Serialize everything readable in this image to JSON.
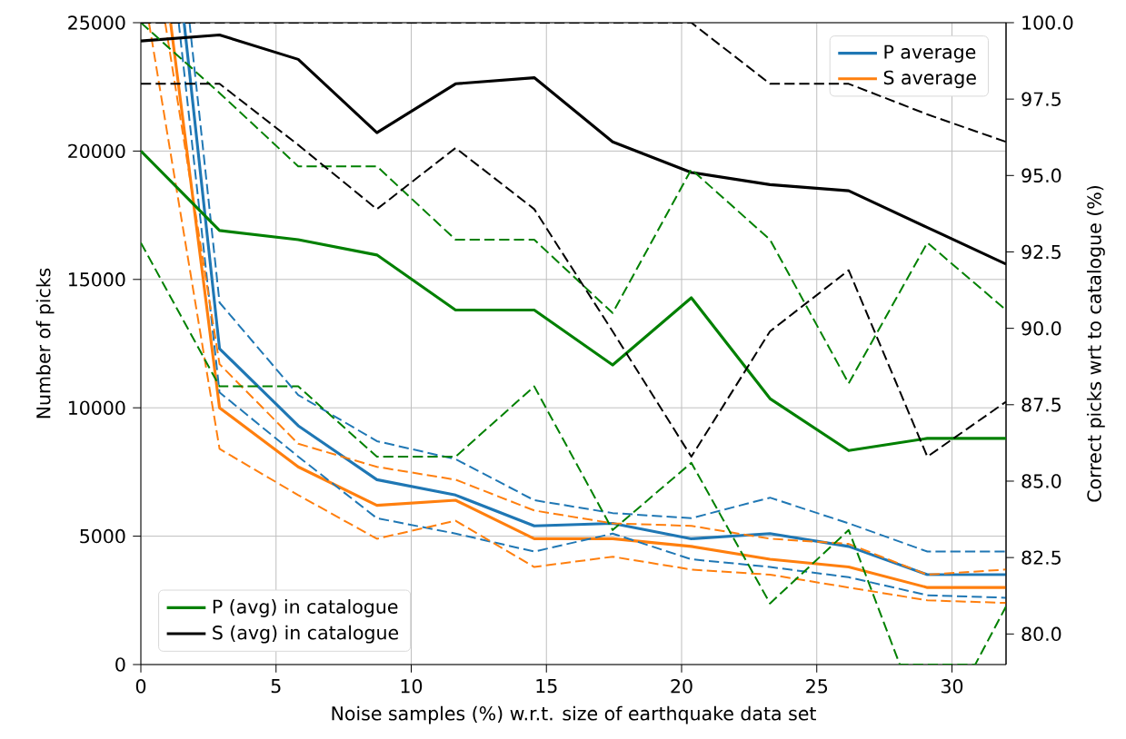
{
  "chart_data": {
    "type": "line",
    "xlabel": "Noise samples (%) w.r.t. size of earthquake data set",
    "ylabel": "Number of picks",
    "y2label": "Correct picks wrt to catalogue (%)",
    "x": [
      0,
      2.91,
      5.82,
      8.73,
      11.64,
      14.55,
      17.45,
      20.36,
      23.27,
      26.18,
      29.09,
      32
    ],
    "xlim": [
      0,
      32
    ],
    "xticks": [
      0,
      5,
      10,
      15,
      20,
      25,
      30
    ],
    "ylim": [
      0,
      25000
    ],
    "yticks": [
      0,
      5000,
      10000,
      15000,
      20000,
      25000
    ],
    "y2lim": [
      79,
      100
    ],
    "y2ticks": [
      {
        "value": 80,
        "label": "80.0"
      },
      {
        "value": 82.5,
        "label": "82.5"
      },
      {
        "value": 85,
        "label": "85.0"
      },
      {
        "value": 87.5,
        "label": "87.5"
      },
      {
        "value": 90,
        "label": "90.0"
      },
      {
        "value": 92.5,
        "label": "92.5"
      },
      {
        "value": 95,
        "label": "95.0"
      },
      {
        "value": 97.5,
        "label": "97.5"
      },
      {
        "value": 100,
        "label": "100.0"
      }
    ],
    "grid": true,
    "legend": [
      "top right",
      "bottom left"
    ],
    "series": [
      {
        "name": "P average",
        "color": "#1f77b4",
        "x": [
          1.6,
          2.91,
          5.82,
          8.73,
          11.64,
          14.55,
          17.45,
          20.36,
          23.27,
          26.18,
          29.09,
          32
        ],
        "values": [
          25000,
          12300,
          9300,
          7200,
          6600,
          5400,
          5500,
          4900,
          5100,
          4600,
          3500,
          3500
        ]
      },
      {
        "name": "S average",
        "color": "#ff7f0e",
        "x": [
          1.1,
          2.91,
          5.82,
          8.73,
          11.64,
          14.55,
          17.45,
          20.36,
          23.27,
          26.18,
          29.09,
          32
        ],
        "values": [
          25000,
          10000,
          7700,
          6200,
          6400,
          4900,
          4900,
          4600,
          4100,
          3800,
          3000,
          3000
        ]
      },
      {
        "color": "#1f77b4",
        "line_style": "dashed",
        "x": [
          1.8,
          2.91,
          5.82,
          8.73,
          11.64,
          14.55,
          17.45,
          20.36,
          23.27,
          26.18,
          29.09,
          32
        ],
        "values": [
          25000,
          14100,
          10500,
          8700,
          8000,
          6400,
          5900,
          5700,
          6500,
          5500,
          4400,
          4400
        ]
      },
      {
        "color": "#1f77b4",
        "line_style": "dashed",
        "x": [
          1.4,
          2.91,
          5.82,
          8.73,
          11.64,
          14.55,
          17.45,
          20.36,
          23.27,
          26.18,
          29.09,
          32
        ],
        "values": [
          25000,
          10600,
          8100,
          5700,
          5100,
          4400,
          5100,
          4100,
          3800,
          3400,
          2700,
          2600
        ]
      },
      {
        "color": "#ff7f0e",
        "line_style": "dashed",
        "x": [
          0.9,
          2.91,
          5.82,
          8.73,
          11.64,
          14.55,
          17.45,
          20.36,
          23.27,
          26.18,
          29.09,
          32
        ],
        "values": [
          25000,
          11700,
          8600,
          7700,
          7200,
          6000,
          5500,
          5400,
          4900,
          4700,
          3500,
          3700
        ]
      },
      {
        "color": "#ff7f0e",
        "line_style": "dashed",
        "x": [
          0.3,
          2.91,
          5.82,
          8.73,
          11.64,
          14.55,
          17.45,
          20.36,
          23.27,
          26.18,
          29.09,
          32
        ],
        "values": [
          25000,
          8400,
          6600,
          4900,
          5600,
          3800,
          4200,
          3700,
          3500,
          3000,
          2500,
          2400
        ]
      },
      {
        "name": "P (avg) in catalogue",
        "color": "#008000",
        "axis": "y2",
        "values": [
          95.8,
          93.2,
          92.9,
          92.4,
          90.6,
          90.6,
          88.8,
          91.0,
          87.7,
          86.0,
          86.4,
          86.4
        ]
      },
      {
        "name": "S (avg) in catalogue",
        "color": "#000000",
        "axis": "y2",
        "values": [
          99.4,
          99.6,
          98.8,
          96.4,
          98.0,
          98.2,
          96.1,
          95.1,
          94.7,
          94.5,
          93.3,
          92.1
        ]
      },
      {
        "color": "#008000",
        "axis": "y2",
        "line_style": "dashed",
        "values": [
          100.0,
          97.7,
          95.3,
          95.3,
          92.9,
          92.9,
          90.5,
          95.2,
          92.9,
          88.2,
          92.8,
          90.6
        ]
      },
      {
        "color": "#008000",
        "axis": "y2",
        "line_style": "dashed",
        "x": [
          0,
          2.91,
          5.82,
          8.73,
          11.64,
          14.55,
          17.45,
          20.36,
          23.27,
          26.18,
          28.07,
          30.86,
          32
        ],
        "values": [
          92.8,
          88.1,
          88.1,
          85.8,
          85.8,
          88.1,
          83.4,
          85.6,
          81.0,
          83.4,
          79,
          79,
          80.9
        ]
      },
      {
        "color": "#000000",
        "axis": "y2",
        "line_style": "dashed",
        "values": [
          100,
          100,
          100,
          100,
          100,
          100,
          100,
          100,
          98.0,
          98.0,
          97.0,
          96.1
        ]
      },
      {
        "color": "#000000",
        "axis": "y2",
        "line_style": "dashed",
        "values": [
          98.0,
          98.0,
          96.0,
          93.9,
          95.9,
          93.9,
          89.9,
          85.8,
          89.9,
          91.9,
          85.8,
          87.6
        ]
      }
    ]
  }
}
